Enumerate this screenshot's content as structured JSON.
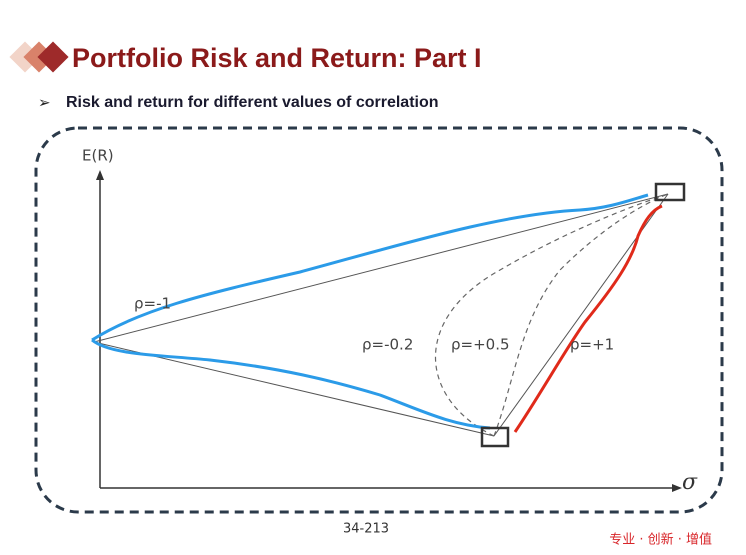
{
  "header": {
    "title": "Portfolio Risk and Return: Part I",
    "subtitle": "Risk and return for different values of correlation"
  },
  "diagram": {
    "y_label": "E(R)",
    "x_label": "σ",
    "curves": [
      {
        "label": "ρ=-1"
      },
      {
        "label": "ρ=-0.2"
      },
      {
        "label": "ρ=+0.5"
      },
      {
        "label": "ρ=+1"
      }
    ]
  },
  "footer": {
    "page": "34-213",
    "slogan": "专业 · 创新 · 增值"
  }
}
